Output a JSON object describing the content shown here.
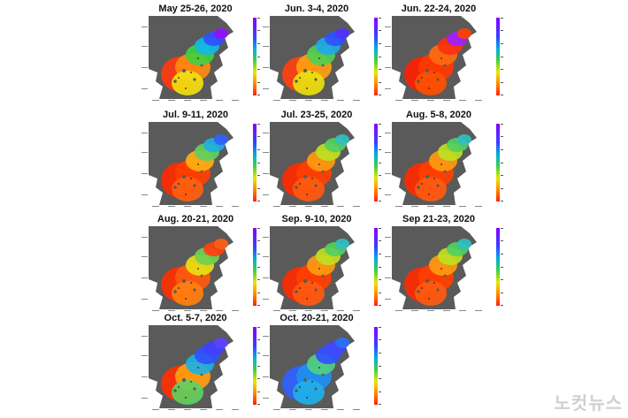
{
  "figure": {
    "panels": [
      {
        "title": "May 25-26, 2020",
        "water": "blue-east"
      },
      {
        "title": "Jun. 3-4, 2020",
        "water": "blue-north"
      },
      {
        "title": "Jun. 22-24, 2020",
        "water": "red"
      },
      {
        "title": "Jul. 9-11, 2020",
        "water": "red-blue-east"
      },
      {
        "title": "Jul. 23-25, 2020",
        "water": "red-green"
      },
      {
        "title": "Aug. 5-8, 2020",
        "water": "red-green"
      },
      {
        "title": "Aug. 20-21, 2020",
        "water": "red-mixed"
      },
      {
        "title": "Sep. 9-10, 2020",
        "water": "red-green"
      },
      {
        "title": "Sep 21-23, 2020",
        "water": "red-green"
      },
      {
        "title": "Oct. 5-7, 2020",
        "water": "blue-mixed"
      },
      {
        "title": "Oct. 20-21, 2020",
        "water": "blue"
      }
    ],
    "colorbar_gradient": [
      "#8a00ff",
      "#3344ff",
      "#00b0e0",
      "#40d040",
      "#e8e800",
      "#ff8800",
      "#ff2000"
    ],
    "land_color": "#5a5a5a"
  },
  "watermark": {
    "text": "노컷뉴스",
    "logo_image": "cbs-nocut-news-logo"
  }
}
